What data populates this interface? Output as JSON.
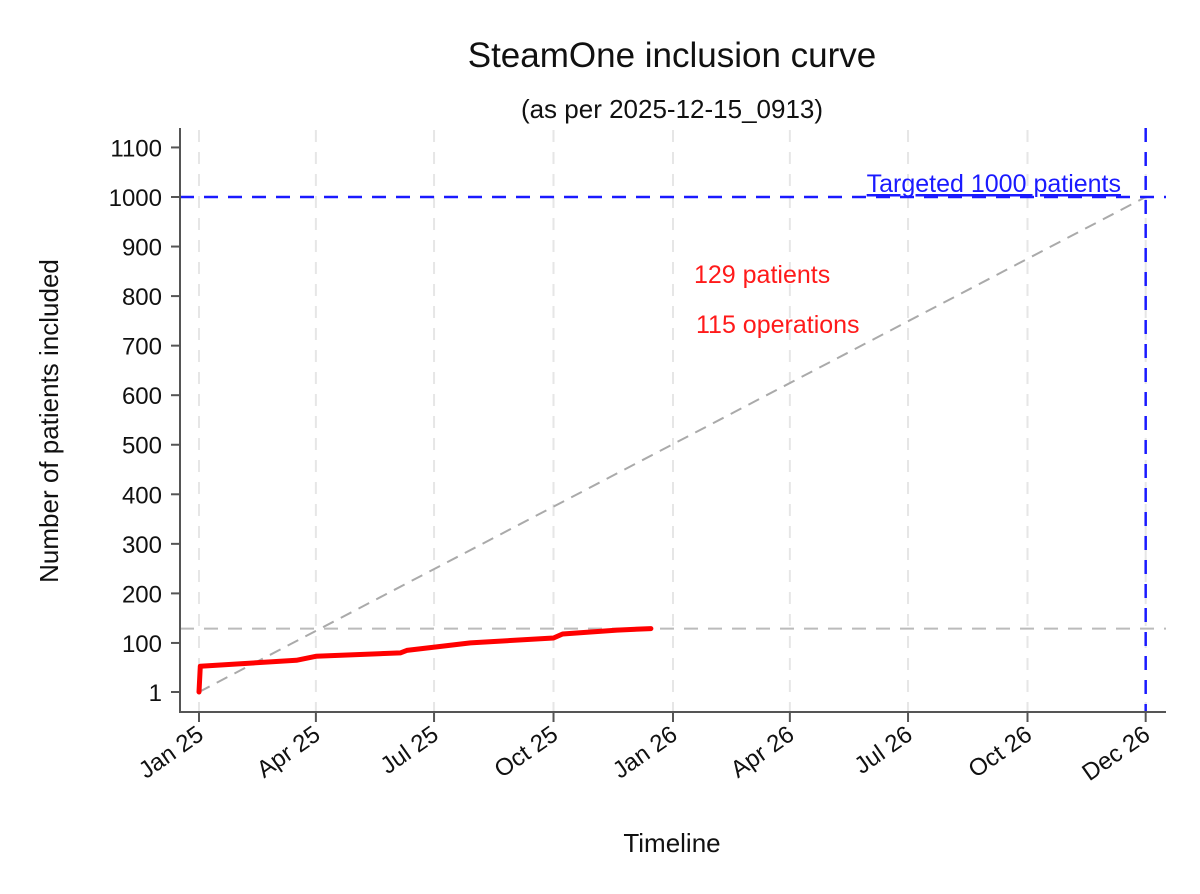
{
  "chart_data": {
    "type": "line",
    "title": "SteamOne inclusion curve",
    "subtitle": "(as per 2025-12-15_0913)",
    "xlabel": "Timeline",
    "ylabel": "Number of patients included",
    "x_ticks": [
      {
        "date": "2025-01-01",
        "label": "Jan 25"
      },
      {
        "date": "2025-04-01",
        "label": "Apr 25"
      },
      {
        "date": "2025-07-01",
        "label": "Jul 25"
      },
      {
        "date": "2025-10-01",
        "label": "Oct 25"
      },
      {
        "date": "2026-01-01",
        "label": "Jan 26"
      },
      {
        "date": "2026-04-01",
        "label": "Apr 26"
      },
      {
        "date": "2026-07-01",
        "label": "Jul 26"
      },
      {
        "date": "2026-10-01",
        "label": "Oct 26"
      },
      {
        "date": "2026-12-31",
        "label": "Dec 26"
      }
    ],
    "y_ticks": [
      1,
      100,
      200,
      300,
      400,
      500,
      600,
      700,
      800,
      900,
      1000,
      1100
    ],
    "xlim": [
      "2024-12-17",
      "2027-01-14"
    ],
    "ylim": [
      -40,
      1135
    ],
    "grid": "vertical dashed",
    "series": [
      {
        "color": "#ff0000",
        "points": [
          [
            "2025-01-01",
            1
          ],
          [
            "2025-01-02",
            53
          ],
          [
            "2025-03-17",
            65
          ],
          [
            "2025-04-01",
            73
          ],
          [
            "2025-06-05",
            80
          ],
          [
            "2025-06-10",
            85
          ],
          [
            "2025-07-03",
            92
          ],
          [
            "2025-07-29",
            100
          ],
          [
            "2025-10-01",
            110
          ],
          [
            "2025-10-08",
            118
          ],
          [
            "2025-11-19",
            126
          ],
          [
            "2025-12-15",
            129
          ]
        ]
      }
    ],
    "reference_lines": {
      "target_line": {
        "from": [
          "2025-01-01",
          1
        ],
        "to": [
          "2026-12-31",
          1000
        ],
        "color": "#aaaaaa"
      },
      "current_level": {
        "y": 129,
        "color": "#bbbbbb"
      },
      "target_level": {
        "y": 1000,
        "color": "#1a1aff"
      },
      "target_date": {
        "x": "2026-12-31",
        "color": "#1a1aff"
      }
    },
    "annotations": {
      "target": "Targeted 1000 patients",
      "patients": "129 patients",
      "operations": "115 operations"
    }
  }
}
